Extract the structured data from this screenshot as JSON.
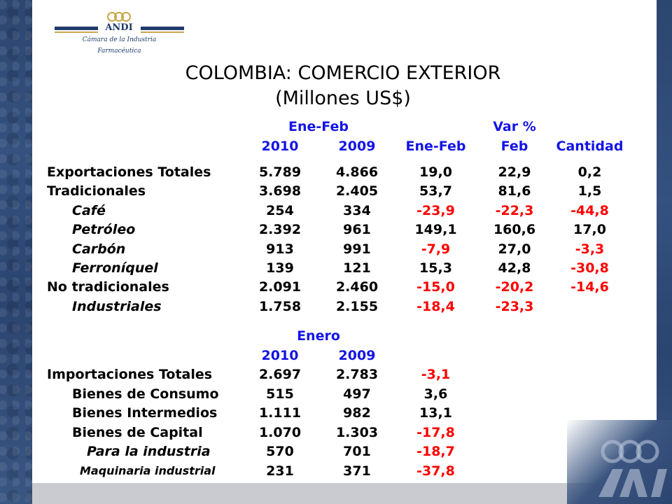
{
  "logo": {
    "name": "ANDI",
    "sub1": "Cámara de la Industria",
    "sub2": "Farmacéutica"
  },
  "title": {
    "line1": "COLOMBIA: COMERCIO EXTERIOR",
    "line2": "(Millones US$)"
  },
  "exports": {
    "period_header": "Ene-Feb",
    "var_header": "Var %",
    "columns": [
      "2010",
      "2009",
      "Ene-Feb",
      "Feb",
      "Cantidad"
    ],
    "rows": [
      {
        "label": "Exportaciones Totales",
        "values": [
          "5.789",
          "4.866",
          "19,0",
          "22,9",
          "0,2"
        ]
      },
      {
        "label": "Tradicionales",
        "values": [
          "3.698",
          "2.405",
          "53,7",
          "81,6",
          "1,5"
        ]
      },
      {
        "label": "Café",
        "values": [
          "254",
          "334",
          "-23,9",
          "-22,3",
          "-44,8"
        ]
      },
      {
        "label": "Petróleo",
        "values": [
          "2.392",
          "961",
          "149,1",
          "160,6",
          "17,0"
        ]
      },
      {
        "label": "Carbón",
        "values": [
          "913",
          "991",
          "-7,9",
          "27,0",
          "-3,3"
        ]
      },
      {
        "label": "Ferroníquel",
        "values": [
          "139",
          "121",
          "15,3",
          "42,8",
          "-30,8"
        ]
      },
      {
        "label": "No tradicionales",
        "values": [
          "2.091",
          "2.460",
          "-15,0",
          "-20,2",
          "-14,6"
        ]
      },
      {
        "label": "Industriales",
        "values": [
          "1.758",
          "2.155",
          "-18,4",
          "-23,3",
          ""
        ]
      }
    ]
  },
  "imports": {
    "period_header": "Enero",
    "columns": [
      "2010",
      "2009"
    ],
    "rows": [
      {
        "label": "Importaciones Totales",
        "values": [
          "2.697",
          "2.783",
          "-3,1"
        ]
      },
      {
        "label": "Bienes de Consumo",
        "values": [
          "515",
          "497",
          "3,6"
        ]
      },
      {
        "label": "Bienes Intermedios",
        "values": [
          "1.111",
          "982",
          "13,1"
        ]
      },
      {
        "label": "Bienes de Capital",
        "values": [
          "1.070",
          "1.303",
          "-17,8"
        ]
      },
      {
        "label": "Para la industria",
        "values": [
          "570",
          "701",
          "-18,7"
        ]
      },
      {
        "label": "Maquinaria industrial",
        "values": [
          "231",
          "371",
          "-37,8"
        ]
      }
    ]
  },
  "colors": {
    "header_blue": "#1414e6",
    "negative_red": "#ff0000",
    "band_blue": "#2d4670"
  }
}
